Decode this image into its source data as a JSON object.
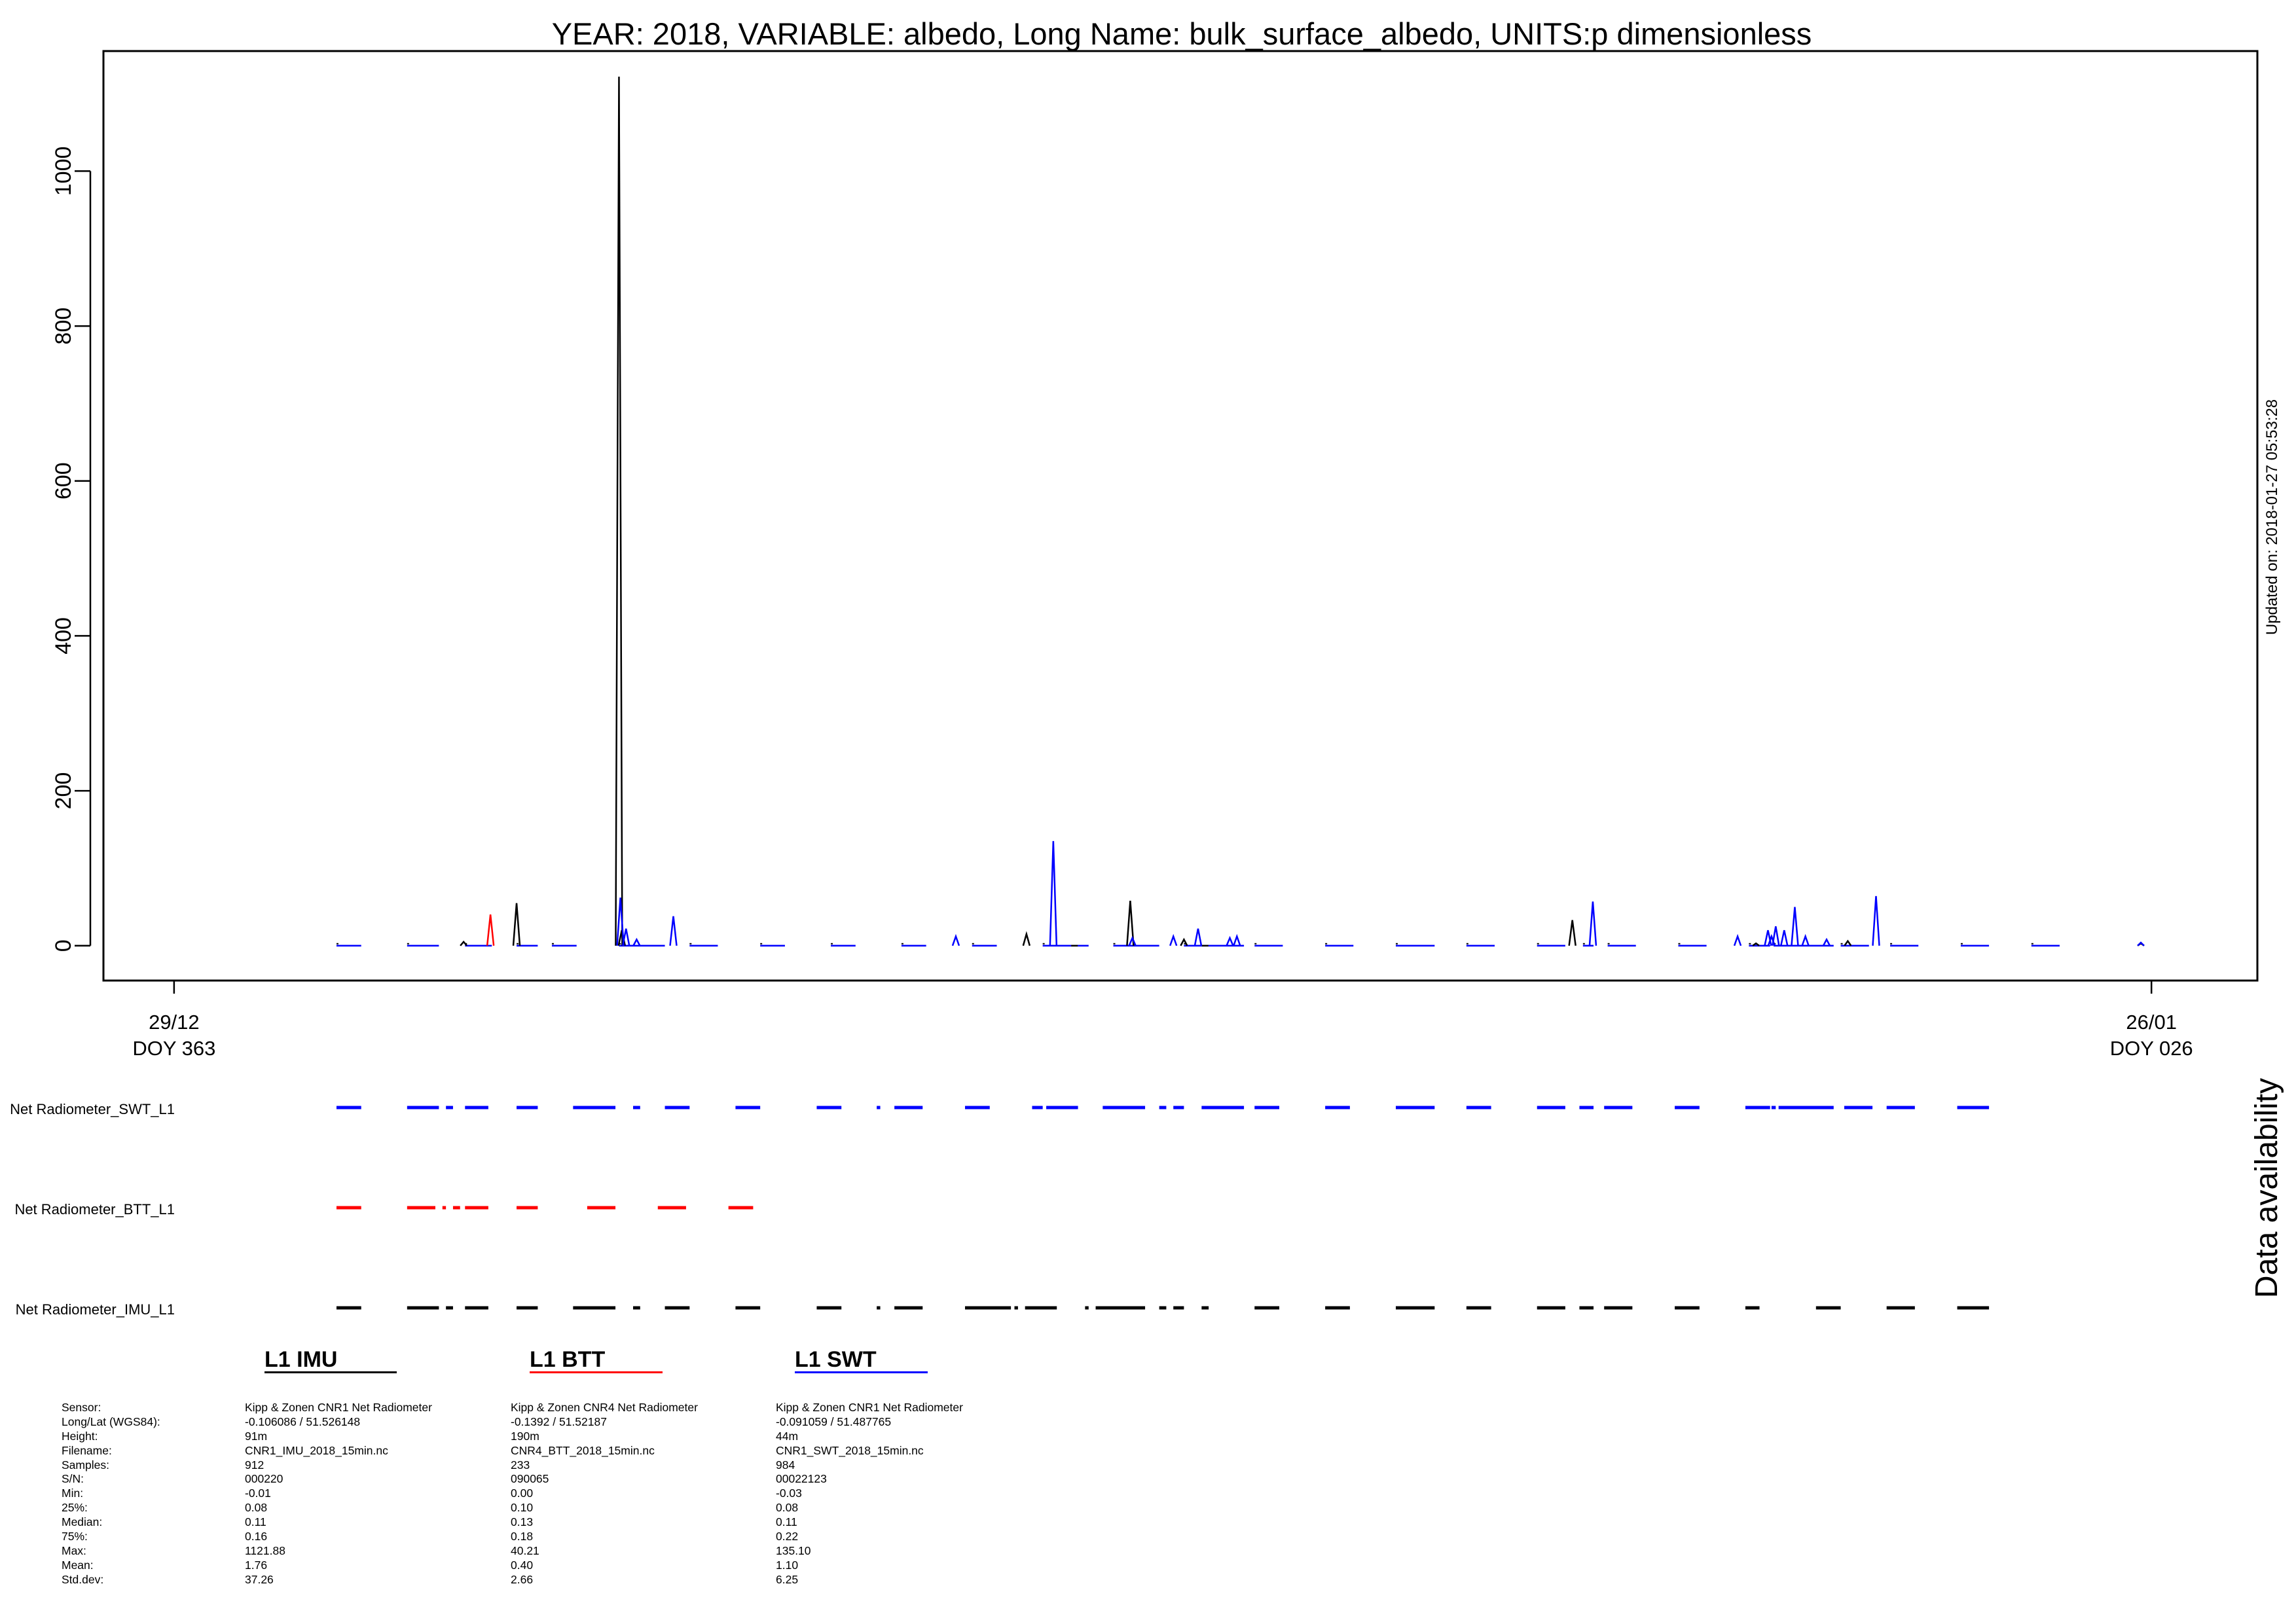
{
  "chart_data": {
    "type": "line",
    "title": "YEAR: 2018, VARIABLE: albedo, Long Name: bulk_surface_albedo, UNITS:p dimensionless",
    "xlabel": "",
    "ylabel": "",
    "side_note": "Updated on: 2018-01-27 05:53:28",
    "ylim": [
      -45,
      1155
    ],
    "yticks": [
      0,
      200,
      400,
      600,
      800,
      1000
    ],
    "xlim_doy": [
      362.0,
      392.5
    ],
    "xticks": [
      {
        "doy": 363,
        "date": "29/12",
        "doy_label": "DOY 363"
      },
      {
        "doy": 391,
        "date": "26/01",
        "doy_label": "DOY 026"
      }
    ],
    "grid": false,
    "series": [
      {
        "name": "L1 IMU",
        "color": "#000000",
        "spikes": [
          {
            "doy": 367.1,
            "value": 5
          },
          {
            "doy": 367.85,
            "value": 55
          },
          {
            "doy": 369.3,
            "value": 1121.88
          },
          {
            "doy": 369.34,
            "value": 20
          },
          {
            "doy": 375.07,
            "value": 15
          },
          {
            "doy": 375.75,
            "value": 0
          },
          {
            "doy": 376.54,
            "value": 58
          },
          {
            "doy": 377.3,
            "value": 8
          },
          {
            "doy": 377.6,
            "value": 0
          },
          {
            "doy": 382.8,
            "value": 33
          },
          {
            "doy": 385.4,
            "value": 3
          },
          {
            "doy": 386.7,
            "value": 6
          },
          {
            "doy": 390.85,
            "value": 3
          }
        ]
      },
      {
        "name": "L1 BTT",
        "color": "#ff0000",
        "spikes": [
          {
            "doy": 367.48,
            "value": 40.21
          }
        ]
      },
      {
        "name": "L1 SWT",
        "color": "#0000ff",
        "spikes": [
          {
            "doy": 369.32,
            "value": 62
          },
          {
            "doy": 369.4,
            "value": 22
          },
          {
            "doy": 369.55,
            "value": 8
          },
          {
            "doy": 370.07,
            "value": 38
          },
          {
            "doy": 374.07,
            "value": 12
          },
          {
            "doy": 375.45,
            "value": 135.1
          },
          {
            "doy": 376.57,
            "value": 10
          },
          {
            "doy": 377.15,
            "value": 12
          },
          {
            "doy": 377.5,
            "value": 22
          },
          {
            "doy": 377.95,
            "value": 10
          },
          {
            "doy": 378.05,
            "value": 12
          },
          {
            "doy": 383.09,
            "value": 57
          },
          {
            "doy": 385.14,
            "value": 12
          },
          {
            "doy": 385.57,
            "value": 20
          },
          {
            "doy": 385.62,
            "value": 12
          },
          {
            "doy": 385.68,
            "value": 25
          },
          {
            "doy": 385.8,
            "value": 20
          },
          {
            "doy": 385.95,
            "value": 50
          },
          {
            "doy": 386.1,
            "value": 12
          },
          {
            "doy": 386.4,
            "value": 8
          },
          {
            "doy": 387.1,
            "value": 64
          },
          {
            "doy": 390.85,
            "value": 4
          }
        ]
      }
    ],
    "daily_segments_doy": [
      [
        365.3,
        365.65
      ],
      [
        366.3,
        366.75
      ],
      [
        367.12,
        367.5
      ],
      [
        367.85,
        368.15
      ],
      [
        368.35,
        368.7
      ],
      [
        369.3,
        369.95
      ],
      [
        370.3,
        370.7
      ],
      [
        371.3,
        371.65
      ],
      [
        372.3,
        372.65
      ],
      [
        373.3,
        373.65
      ],
      [
        374.3,
        374.65
      ],
      [
        375.3,
        375.95
      ],
      [
        376.3,
        376.95
      ],
      [
        377.3,
        378.15
      ],
      [
        378.3,
        378.7
      ],
      [
        379.3,
        379.7
      ],
      [
        380.3,
        380.85
      ],
      [
        381.3,
        381.7
      ],
      [
        382.3,
        382.7
      ],
      [
        382.95,
        383.1
      ],
      [
        383.3,
        383.7
      ],
      [
        384.3,
        384.7
      ],
      [
        385.3,
        385.6
      ],
      [
        385.65,
        386.5
      ],
      [
        386.6,
        387.0
      ],
      [
        387.3,
        387.7
      ],
      [
        388.3,
        388.7
      ],
      [
        389.3,
        389.7
      ]
    ],
    "availability": {
      "label": "Data availability",
      "rows": [
        {
          "name": "Net Radiometer_SWT_L1",
          "color": "#0000ff",
          "segments_doy": [
            [
              365.3,
              365.65
            ],
            [
              366.3,
              366.75
            ],
            [
              366.85,
              366.95
            ],
            [
              367.12,
              367.45
            ],
            [
              367.85,
              368.15
            ],
            [
              368.65,
              369.25
            ],
            [
              369.5,
              369.6
            ],
            [
              369.95,
              370.3
            ],
            [
              370.95,
              371.3
            ],
            [
              372.1,
              372.45
            ],
            [
              372.95,
              373.0
            ],
            [
              373.2,
              373.6
            ],
            [
              374.2,
              374.55
            ],
            [
              375.15,
              375.3
            ],
            [
              375.35,
              375.8
            ],
            [
              376.15,
              376.75
            ],
            [
              376.95,
              377.05
            ],
            [
              377.15,
              377.3
            ],
            [
              377.55,
              378.15
            ],
            [
              378.3,
              378.65
            ],
            [
              379.3,
              379.65
            ],
            [
              380.3,
              380.85
            ],
            [
              381.3,
              381.65
            ],
            [
              382.3,
              382.7
            ],
            [
              382.9,
              383.1
            ],
            [
              383.25,
              383.65
            ],
            [
              384.25,
              384.6
            ],
            [
              385.25,
              385.6
            ],
            [
              385.62,
              385.68
            ],
            [
              385.72,
              386.5
            ],
            [
              386.65,
              387.05
            ],
            [
              387.25,
              387.65
            ],
            [
              388.25,
              388.7
            ]
          ]
        },
        {
          "name": "Net Radiometer_BTT_L1",
          "color": "#ff0000",
          "segments_doy": [
            [
              365.3,
              365.65
            ],
            [
              366.3,
              366.7
            ],
            [
              366.8,
              366.85
            ],
            [
              366.95,
              367.05
            ],
            [
              367.12,
              367.45
            ],
            [
              367.85,
              368.15
            ],
            [
              368.85,
              369.25
            ],
            [
              369.85,
              370.25
            ],
            [
              370.85,
              371.2
            ]
          ]
        },
        {
          "name": "Net Radiometer_IMU_L1",
          "color": "#000000",
          "segments_doy": [
            [
              365.3,
              365.65
            ],
            [
              366.3,
              366.75
            ],
            [
              366.85,
              366.95
            ],
            [
              367.12,
              367.45
            ],
            [
              367.85,
              368.15
            ],
            [
              368.65,
              369.25
            ],
            [
              369.5,
              369.6
            ],
            [
              369.95,
              370.3
            ],
            [
              370.95,
              371.3
            ],
            [
              372.1,
              372.45
            ],
            [
              372.95,
              373.0
            ],
            [
              373.2,
              373.6
            ],
            [
              374.2,
              374.85
            ],
            [
              374.9,
              374.95
            ],
            [
              375.05,
              375.5
            ],
            [
              375.9,
              375.95
            ],
            [
              376.05,
              376.75
            ],
            [
              376.95,
              377.05
            ],
            [
              377.15,
              377.3
            ],
            [
              377.55,
              377.65
            ],
            [
              378.3,
              378.65
            ],
            [
              379.3,
              379.65
            ],
            [
              380.3,
              380.85
            ],
            [
              381.3,
              381.65
            ],
            [
              382.3,
              382.7
            ],
            [
              382.9,
              383.1
            ],
            [
              383.25,
              383.65
            ],
            [
              384.25,
              384.6
            ],
            [
              385.25,
              385.45
            ],
            [
              386.25,
              386.6
            ],
            [
              387.25,
              387.65
            ],
            [
              388.25,
              388.7
            ]
          ]
        }
      ]
    }
  },
  "legend": {
    "row_labels": [
      "Sensor:",
      "Long/Lat (WGS84):",
      "Height:",
      "Filename:",
      "Samples:",
      "S/N:",
      "Min:",
      "25%:",
      "Median:",
      "75%:",
      "Max:",
      "Mean:",
      "Std.dev:"
    ],
    "columns": [
      {
        "title": "L1 IMU",
        "color": "#000000",
        "values": [
          "Kipp & Zonen CNR1 Net Radiometer",
          " -0.106086 / 51.526148",
          "91m",
          "CNR1_IMU_2018_15min.nc",
          "912",
          "000220",
          "-0.01",
          "0.08",
          "0.11",
          "0.16",
          "1121.88",
          "1.76",
          "37.26"
        ]
      },
      {
        "title": "L1 BTT",
        "color": "#ff0000",
        "values": [
          "Kipp & Zonen CNR4 Net Radiometer",
          " -0.1392 / 51.52187",
          "190m",
          "CNR4_BTT_2018_15min.nc",
          "233",
          "090065",
          "0.00",
          "0.10",
          "0.13",
          "0.18",
          "40.21",
          "0.40",
          "2.66"
        ]
      },
      {
        "title": "L1 SWT",
        "color": "#0000ff",
        "values": [
          "Kipp & Zonen CNR1 Net Radiometer",
          " -0.091059 / 51.487765",
          "44m",
          "CNR1_SWT_2018_15min.nc",
          "984",
          "00022123",
          "-0.03",
          "0.08",
          "0.11",
          "0.22",
          "135.10",
          "1.10",
          "6.25"
        ]
      }
    ]
  }
}
